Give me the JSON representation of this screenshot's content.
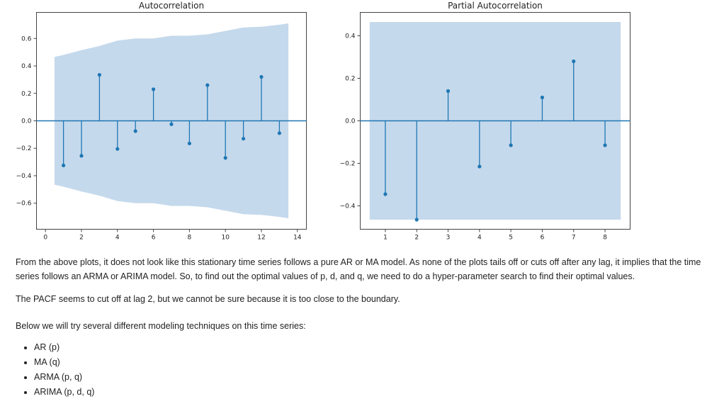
{
  "charts": {
    "acf": {
      "title": "Autocorrelation",
      "color": "#1f77b4",
      "band_color": "#c5d9ec",
      "chart_data": {
        "type": "stem",
        "title": "Autocorrelation",
        "xlim": [
          -0.5,
          14.5
        ],
        "ylim": [
          -0.79,
          0.79
        ],
        "xticks": [
          0,
          2,
          4,
          6,
          8,
          10,
          12,
          14
        ],
        "yticks": [
          -0.6,
          -0.4,
          -0.2,
          0.0,
          0.2,
          0.4,
          0.6
        ],
        "ytick_labels": [
          "−0.6",
          "−0.4",
          "−0.2",
          "0.0",
          "0.2",
          "0.4",
          "0.6"
        ],
        "lags": [
          1,
          2,
          3,
          4,
          5,
          6,
          7,
          8,
          9,
          10,
          11,
          12,
          13
        ],
        "values": [
          -0.325,
          -0.255,
          0.335,
          -0.205,
          -0.075,
          0.23,
          -0.025,
          -0.165,
          0.26,
          -0.27,
          -0.13,
          0.32,
          -0.09
        ],
        "confidence_band": {
          "x": [
            0.5,
            1,
            2,
            3,
            4,
            5,
            6,
            7,
            8,
            9,
            10,
            11,
            12,
            13,
            13.5
          ],
          "upper": [
            0.465,
            0.48,
            0.515,
            0.545,
            0.585,
            0.6,
            0.6,
            0.62,
            0.62,
            0.63,
            0.655,
            0.68,
            0.685,
            0.7,
            0.71
          ],
          "lower": [
            -0.465,
            -0.48,
            -0.515,
            -0.545,
            -0.585,
            -0.6,
            -0.6,
            -0.62,
            -0.62,
            -0.63,
            -0.655,
            -0.68,
            -0.685,
            -0.7,
            -0.71
          ]
        }
      }
    },
    "pacf": {
      "title": "Partial Autocorrelation",
      "color": "#1f77b4",
      "band_color": "#c5d9ec",
      "chart_data": {
        "type": "stem",
        "title": "Partial Autocorrelation",
        "xlim": [
          0.2,
          8.8
        ],
        "ylim": [
          -0.51,
          0.51
        ],
        "xticks": [
          1,
          2,
          3,
          4,
          5,
          6,
          7,
          8
        ],
        "yticks": [
          -0.4,
          -0.2,
          0.0,
          0.2,
          0.4
        ],
        "ytick_labels": [
          "−0.4",
          "−0.2",
          "0.0",
          "0.2",
          "0.4"
        ],
        "lags": [
          1,
          2,
          3,
          4,
          5,
          6,
          7,
          8
        ],
        "values": [
          -0.345,
          -0.465,
          0.14,
          -0.215,
          -0.115,
          0.11,
          0.28,
          -0.115
        ],
        "confidence_band": {
          "x": [
            0.5,
            8.5
          ],
          "upper": [
            0.465,
            0.465
          ],
          "lower": [
            -0.465,
            -0.465
          ]
        }
      }
    }
  },
  "text": {
    "paragraph1": "From the above plots, it does not look like this stationary time series follows a pure AR or MA model. As none of the plots tails off or cuts off after any lag, it implies that the time series follows an ARMA or ARIMA model. So, to find out the optimal values of p, d, and q, we need to do a hyper-parameter search to find their optimal values.",
    "paragraph2": "The PACF seems to cut off at lag 2, but we cannot be sure because it is too close to the boundary.",
    "paragraph3": "Below we will try several different modeling techniques on this time series:",
    "list": [
      "AR (p)",
      "MA (q)",
      "ARMA (p, q)",
      "ARIMA (p, d, q)"
    ]
  }
}
